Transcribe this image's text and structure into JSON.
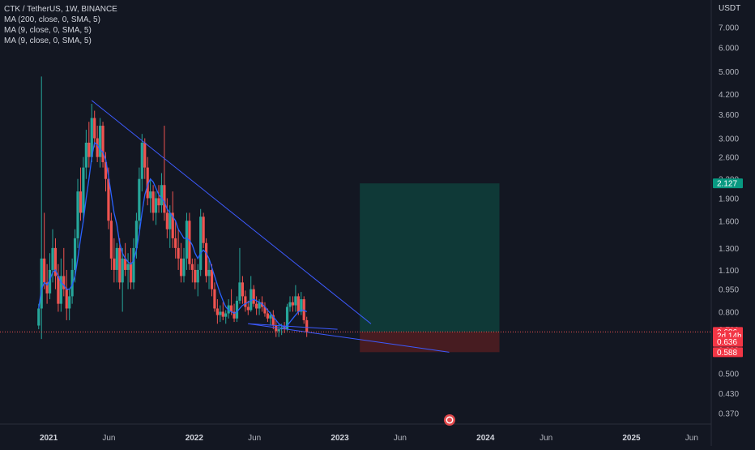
{
  "header": {
    "symbol_line": "CTK / TetherUS, 1W, BINANCE",
    "indicators": [
      "MA (200, close, 0, SMA, 5)",
      "MA (9, close, 0, SMA, 5)",
      "MA (9, close, 0, SMA, 5)"
    ]
  },
  "colors": {
    "background": "#131722",
    "up": "#26a69a",
    "down": "#ef5350",
    "ma": "#2962ff",
    "trendline": "#3d5afe",
    "target_zone": "#0f3b39",
    "stop_zone": "#4a1c22",
    "current_price_line": "#ef5350"
  },
  "chart_data": {
    "type": "candlestick",
    "title": "CTK / TetherUS, 1W, BINANCE",
    "currency_label": "USDT",
    "y_scale": "log",
    "ylim": [
      0.34,
      8.6
    ],
    "xlim": [
      "2020-09-01",
      "2025-07-20"
    ],
    "y_ticks": [
      "7.000",
      "6.000",
      "5.000",
      "4.200",
      "3.600",
      "3.000",
      "2.600",
      "2.200",
      "1.900",
      "1.600",
      "1.300",
      "1.100",
      "0.950",
      "0.800",
      "0.700",
      "0.600",
      "0.500",
      "0.430",
      "0.370"
    ],
    "x_ticks": [
      {
        "label": "2021",
        "date": "2021-01-01"
      },
      {
        "label": "Jun",
        "date": "2021-06-01"
      },
      {
        "label": "2022",
        "date": "2022-01-01"
      },
      {
        "label": "Jun",
        "date": "2022-06-01"
      },
      {
        "label": "2023",
        "date": "2023-01-01"
      },
      {
        "label": "Jun",
        "date": "2023-06-01"
      },
      {
        "label": "2024",
        "date": "2024-01-01"
      },
      {
        "label": "Jun",
        "date": "2024-06-01"
      },
      {
        "label": "2025",
        "date": "2025-01-01"
      },
      {
        "label": "Jun",
        "date": "2025-06-01"
      }
    ],
    "price_labels": [
      {
        "text": "2.127",
        "value": 2.127,
        "color": "#089981"
      },
      {
        "text": "0.686",
        "value": 0.686,
        "color": "#f23645"
      },
      {
        "text": "2d 14h",
        "value": 0.666,
        "color": "#f23645"
      },
      {
        "text": "0.636",
        "value": 0.636,
        "color": "#f23645"
      },
      {
        "text": "0.588",
        "value": 0.588,
        "color": "#f23645"
      }
    ],
    "current_price": 0.686,
    "candle_start": "2020-12-07",
    "candles": [
      [
        0.72,
        0.85,
        0.7,
        0.82
      ],
      [
        0.82,
        4.8,
        0.65,
        1.2
      ],
      [
        1.2,
        1.7,
        0.95,
        1.0
      ],
      [
        1.0,
        1.15,
        0.85,
        0.92
      ],
      [
        0.92,
        1.25,
        0.88,
        1.1
      ],
      [
        1.1,
        1.5,
        1.0,
        1.3
      ],
      [
        1.3,
        1.4,
        0.95,
        1.05
      ],
      [
        1.05,
        1.15,
        0.8,
        0.85
      ],
      [
        0.85,
        1.2,
        0.8,
        1.05
      ],
      [
        1.05,
        1.3,
        0.9,
        0.95
      ],
      [
        0.95,
        1.1,
        0.75,
        0.82
      ],
      [
        0.82,
        0.95,
        0.75,
        0.9
      ],
      [
        0.9,
        1.2,
        0.85,
        1.1
      ],
      [
        1.1,
        1.5,
        1.0,
        1.4
      ],
      [
        1.4,
        2.2,
        1.3,
        2.0
      ],
      [
        2.0,
        2.4,
        1.6,
        1.7
      ],
      [
        1.7,
        2.6,
        1.6,
        2.4
      ],
      [
        2.4,
        3.2,
        2.2,
        2.9
      ],
      [
        2.9,
        3.4,
        2.4,
        2.6
      ],
      [
        2.6,
        3.9,
        2.5,
        3.5
      ],
      [
        3.5,
        3.7,
        2.8,
        3.0
      ],
      [
        3.0,
        3.3,
        2.5,
        2.6
      ],
      [
        2.6,
        3.5,
        2.4,
        3.3
      ],
      [
        3.3,
        3.4,
        2.4,
        2.5
      ],
      [
        2.5,
        2.7,
        2.0,
        2.2
      ],
      [
        2.2,
        2.4,
        1.5,
        1.6
      ],
      [
        1.6,
        1.7,
        1.1,
        1.2
      ],
      [
        1.2,
        1.4,
        1.0,
        1.1
      ],
      [
        1.1,
        1.35,
        1.0,
        1.3
      ],
      [
        1.3,
        1.4,
        0.95,
        1.0
      ],
      [
        1.0,
        1.3,
        0.8,
        1.2
      ],
      [
        1.2,
        1.35,
        1.05,
        1.1
      ],
      [
        1.1,
        1.25,
        0.95,
        1.15
      ],
      [
        1.15,
        1.3,
        0.95,
        1.0
      ],
      [
        1.0,
        1.4,
        0.95,
        1.3
      ],
      [
        1.3,
        1.7,
        1.2,
        1.6
      ],
      [
        1.6,
        2.4,
        1.5,
        2.2
      ],
      [
        2.2,
        3.1,
        2.0,
        2.9
      ],
      [
        2.9,
        3.0,
        2.2,
        2.4
      ],
      [
        2.4,
        2.6,
        1.8,
        1.9
      ],
      [
        1.9,
        2.2,
        1.7,
        2.0
      ],
      [
        2.0,
        2.1,
        1.6,
        1.7
      ],
      [
        1.7,
        2.0,
        1.55,
        1.9
      ],
      [
        1.9,
        2.1,
        1.7,
        1.8
      ],
      [
        1.8,
        2.3,
        1.7,
        2.1
      ],
      [
        2.1,
        3.3,
        1.6,
        1.7
      ],
      [
        1.7,
        1.9,
        1.4,
        1.5
      ],
      [
        1.5,
        1.8,
        1.3,
        1.7
      ],
      [
        1.7,
        2.0,
        1.3,
        1.4
      ],
      [
        1.4,
        1.6,
        1.2,
        1.3
      ],
      [
        1.3,
        1.5,
        1.1,
        1.2
      ],
      [
        1.2,
        1.35,
        1.0,
        1.05
      ],
      [
        1.05,
        1.3,
        1.0,
        1.2
      ],
      [
        1.2,
        1.7,
        1.1,
        1.6
      ],
      [
        1.6,
        1.7,
        1.1,
        1.15
      ],
      [
        1.15,
        1.2,
        1.0,
        1.1
      ],
      [
        1.1,
        1.2,
        0.95,
        1.0
      ],
      [
        1.0,
        1.15,
        0.9,
        1.1
      ],
      [
        1.1,
        1.75,
        1.05,
        1.65
      ],
      [
        1.65,
        1.7,
        1.3,
        1.35
      ],
      [
        1.35,
        1.4,
        1.0,
        1.05
      ],
      [
        1.05,
        1.2,
        0.95,
        1.1
      ],
      [
        1.1,
        1.15,
        0.9,
        0.95
      ],
      [
        0.95,
        1.0,
        0.8,
        0.82
      ],
      [
        0.82,
        0.88,
        0.73,
        0.78
      ],
      [
        0.78,
        0.84,
        0.74,
        0.8
      ],
      [
        0.8,
        0.86,
        0.75,
        0.77
      ],
      [
        0.77,
        0.81,
        0.73,
        0.79
      ],
      [
        0.79,
        0.88,
        0.76,
        0.84
      ],
      [
        0.84,
        0.95,
        0.78,
        0.8
      ],
      [
        0.8,
        0.85,
        0.74,
        0.76
      ],
      [
        0.76,
        0.9,
        0.74,
        0.87
      ],
      [
        0.87,
        1.3,
        0.85,
        1.0
      ],
      [
        1.0,
        1.05,
        0.85,
        0.9
      ],
      [
        0.9,
        0.94,
        0.8,
        0.83
      ],
      [
        0.83,
        0.87,
        0.78,
        0.81
      ],
      [
        0.81,
        1.05,
        0.8,
        0.95
      ],
      [
        0.95,
        0.98,
        0.83,
        0.85
      ],
      [
        0.85,
        0.9,
        0.78,
        0.82
      ],
      [
        0.82,
        0.88,
        0.78,
        0.86
      ],
      [
        0.86,
        0.9,
        0.8,
        0.83
      ],
      [
        0.83,
        0.86,
        0.77,
        0.79
      ],
      [
        0.79,
        0.82,
        0.74,
        0.76
      ],
      [
        0.76,
        0.8,
        0.72,
        0.78
      ],
      [
        0.78,
        0.81,
        0.7,
        0.72
      ],
      [
        0.72,
        0.75,
        0.66,
        0.69
      ],
      [
        0.69,
        0.73,
        0.66,
        0.7
      ],
      [
        0.7,
        0.73,
        0.67,
        0.71
      ],
      [
        0.71,
        0.74,
        0.68,
        0.7
      ],
      [
        0.7,
        0.85,
        0.69,
        0.83
      ],
      [
        0.83,
        0.9,
        0.8,
        0.86
      ],
      [
        0.86,
        0.9,
        0.8,
        0.84
      ],
      [
        0.84,
        0.98,
        0.8,
        0.9
      ],
      [
        0.9,
        0.92,
        0.78,
        0.8
      ],
      [
        0.8,
        0.93,
        0.78,
        0.88
      ],
      [
        0.88,
        0.9,
        0.73,
        0.75
      ],
      [
        0.75,
        0.77,
        0.66,
        0.686
      ]
    ],
    "ma_fast": [
      0.82,
      0.95,
      1.0,
      0.98,
      1.02,
      1.08,
      1.1,
      1.05,
      1.0,
      0.98,
      0.95,
      0.95,
      0.98,
      1.05,
      1.2,
      1.4,
      1.6,
      1.9,
      2.2,
      2.6,
      2.9,
      2.85,
      2.75,
      2.7,
      2.55,
      2.25,
      1.95,
      1.7,
      1.55,
      1.35,
      1.25,
      1.2,
      1.17,
      1.15,
      1.18,
      1.28,
      1.45,
      1.7,
      1.95,
      2.1,
      2.2,
      2.15,
      2.05,
      1.95,
      1.9,
      1.85,
      1.75,
      1.7,
      1.65,
      1.6,
      1.5,
      1.45,
      1.4,
      1.4,
      1.38,
      1.33,
      1.25,
      1.2,
      1.25,
      1.28,
      1.25,
      1.2,
      1.12,
      1.05,
      0.98,
      0.92,
      0.87,
      0.83,
      0.81,
      0.8,
      0.79,
      0.8,
      0.82,
      0.84,
      0.85,
      0.86,
      0.87,
      0.88,
      0.87,
      0.86,
      0.85,
      0.83,
      0.81,
      0.79,
      0.77,
      0.75,
      0.73,
      0.72,
      0.71,
      0.72,
      0.74,
      0.76,
      0.78,
      0.8,
      0.81,
      0.81,
      0.8
    ],
    "trendlines": [
      {
        "name": "descending resistance",
        "x1": "2021-04-19",
        "y1": 4.0,
        "x2": "2023-03-20",
        "y2": 0.73
      },
      {
        "name": "support base",
        "x1": "2022-05-16",
        "y1": 0.73,
        "x2": "2022-12-26",
        "y2": 0.7
      },
      {
        "name": "descending support",
        "x1": "2022-05-16",
        "y1": 0.73,
        "x2": "2023-10-02",
        "y2": 0.588
      }
    ],
    "position": {
      "entry": 0.686,
      "target": 2.127,
      "stop": 0.588,
      "x_start": "2023-02-20",
      "x_end": "2024-02-05"
    }
  }
}
